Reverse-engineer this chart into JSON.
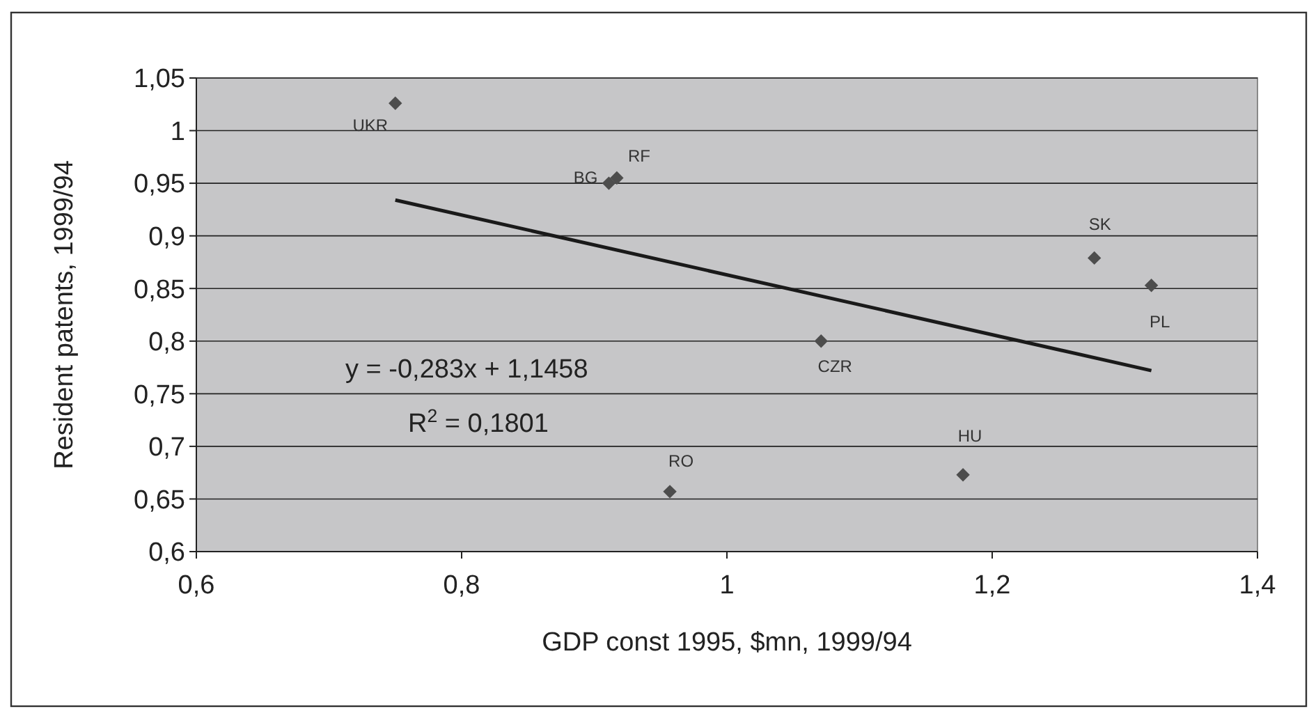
{
  "chart_data": {
    "type": "scatter",
    "xlabel": "GDP const 1995, $mn, 1999/94",
    "ylabel": "Resident patents, 1999/94",
    "xlim": [
      0.6,
      1.4
    ],
    "xticks": [
      {
        "value": 0.6,
        "label": "0,6"
      },
      {
        "value": 0.8,
        "label": "0,8"
      },
      {
        "value": 1,
        "label": "1"
      },
      {
        "value": 1.2,
        "label": "1,2"
      },
      {
        "value": 1.4,
        "label": "1,4"
      }
    ],
    "ylim": [
      0.6,
      1.05
    ],
    "yticks": [
      {
        "value": 0.6,
        "label": "0,6"
      },
      {
        "value": 0.65,
        "label": "0,65"
      },
      {
        "value": 0.7,
        "label": "0,7"
      },
      {
        "value": 0.75,
        "label": "0,75"
      },
      {
        "value": 0.8,
        "label": "0,8"
      },
      {
        "value": 0.85,
        "label": "0,85"
      },
      {
        "value": 0.9,
        "label": "0,9"
      },
      {
        "value": 0.95,
        "label": "0,95"
      },
      {
        "value": 1,
        "label": "1"
      },
      {
        "value": 1.05,
        "label": "1,05"
      }
    ],
    "grid": "y",
    "series": [
      {
        "marker": "diamond",
        "color": "#4d4d4d",
        "x": [
          0.75,
          0.911,
          0.917,
          1.277,
          1.32,
          1.071,
          0.957,
          1.178
        ],
        "values": [
          1.026,
          0.95,
          0.955,
          0.879,
          0.853,
          0.8,
          0.657,
          0.673
        ],
        "value_labels": [
          "UKR",
          "BG",
          "RF",
          "SK",
          "PL",
          "CZR",
          "RO",
          "HU"
        ]
      },
      {
        "type": "line",
        "marker": "none",
        "line_style": "solid",
        "color": "#1a1a1a",
        "x": [
          0.75,
          1.32
        ],
        "values": [
          0.934,
          0.772
        ]
      }
    ],
    "annotations": [
      "y = -0,283x + 1,1458",
      "R$^{2}$ = 0,1801"
    ]
  }
}
